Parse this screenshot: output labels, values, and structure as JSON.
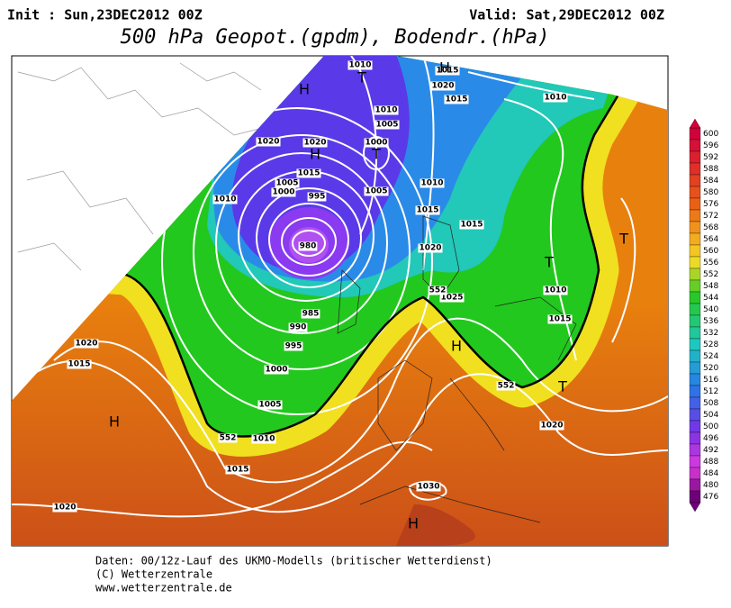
{
  "header": {
    "init": "Init : Sun,23DEC2012 00Z",
    "valid": "Valid: Sat,29DEC2012 00Z",
    "title": "500 hPa Geopot.(gpdm), Bodendr.(hPa)"
  },
  "colorbar": {
    "labels": [
      600,
      596,
      592,
      588,
      584,
      580,
      576,
      572,
      568,
      564,
      560,
      556,
      552,
      548,
      544,
      540,
      536,
      532,
      528,
      524,
      520,
      516,
      512,
      508,
      504,
      500,
      496,
      492,
      488,
      484,
      480,
      476
    ]
  },
  "map": {
    "labels": [
      1010,
      1015,
      1020,
      1015,
      1010,
      1010,
      1005,
      1000,
      1020,
      1020,
      1015,
      1005,
      1000,
      995,
      1005,
      1010,
      1015,
      1015,
      1010,
      1020,
      1025,
      985,
      990,
      995,
      1000,
      1005,
      1010,
      1015,
      1020,
      1015,
      1010,
      1015,
      1020,
      1030,
      1020,
      980,
      552,
      552,
      552,
      "H",
      "T",
      "H",
      "T",
      "H",
      "T",
      "T",
      "H",
      "H",
      "H",
      "T"
    ]
  },
  "footer": {
    "lines": [
      "Daten: 00/12z-Lauf des UKMO-Modells (britischer Wetterdienst)",
      "(C) Wetterzentrale",
      "www.wetterzentrale.de"
    ]
  }
}
